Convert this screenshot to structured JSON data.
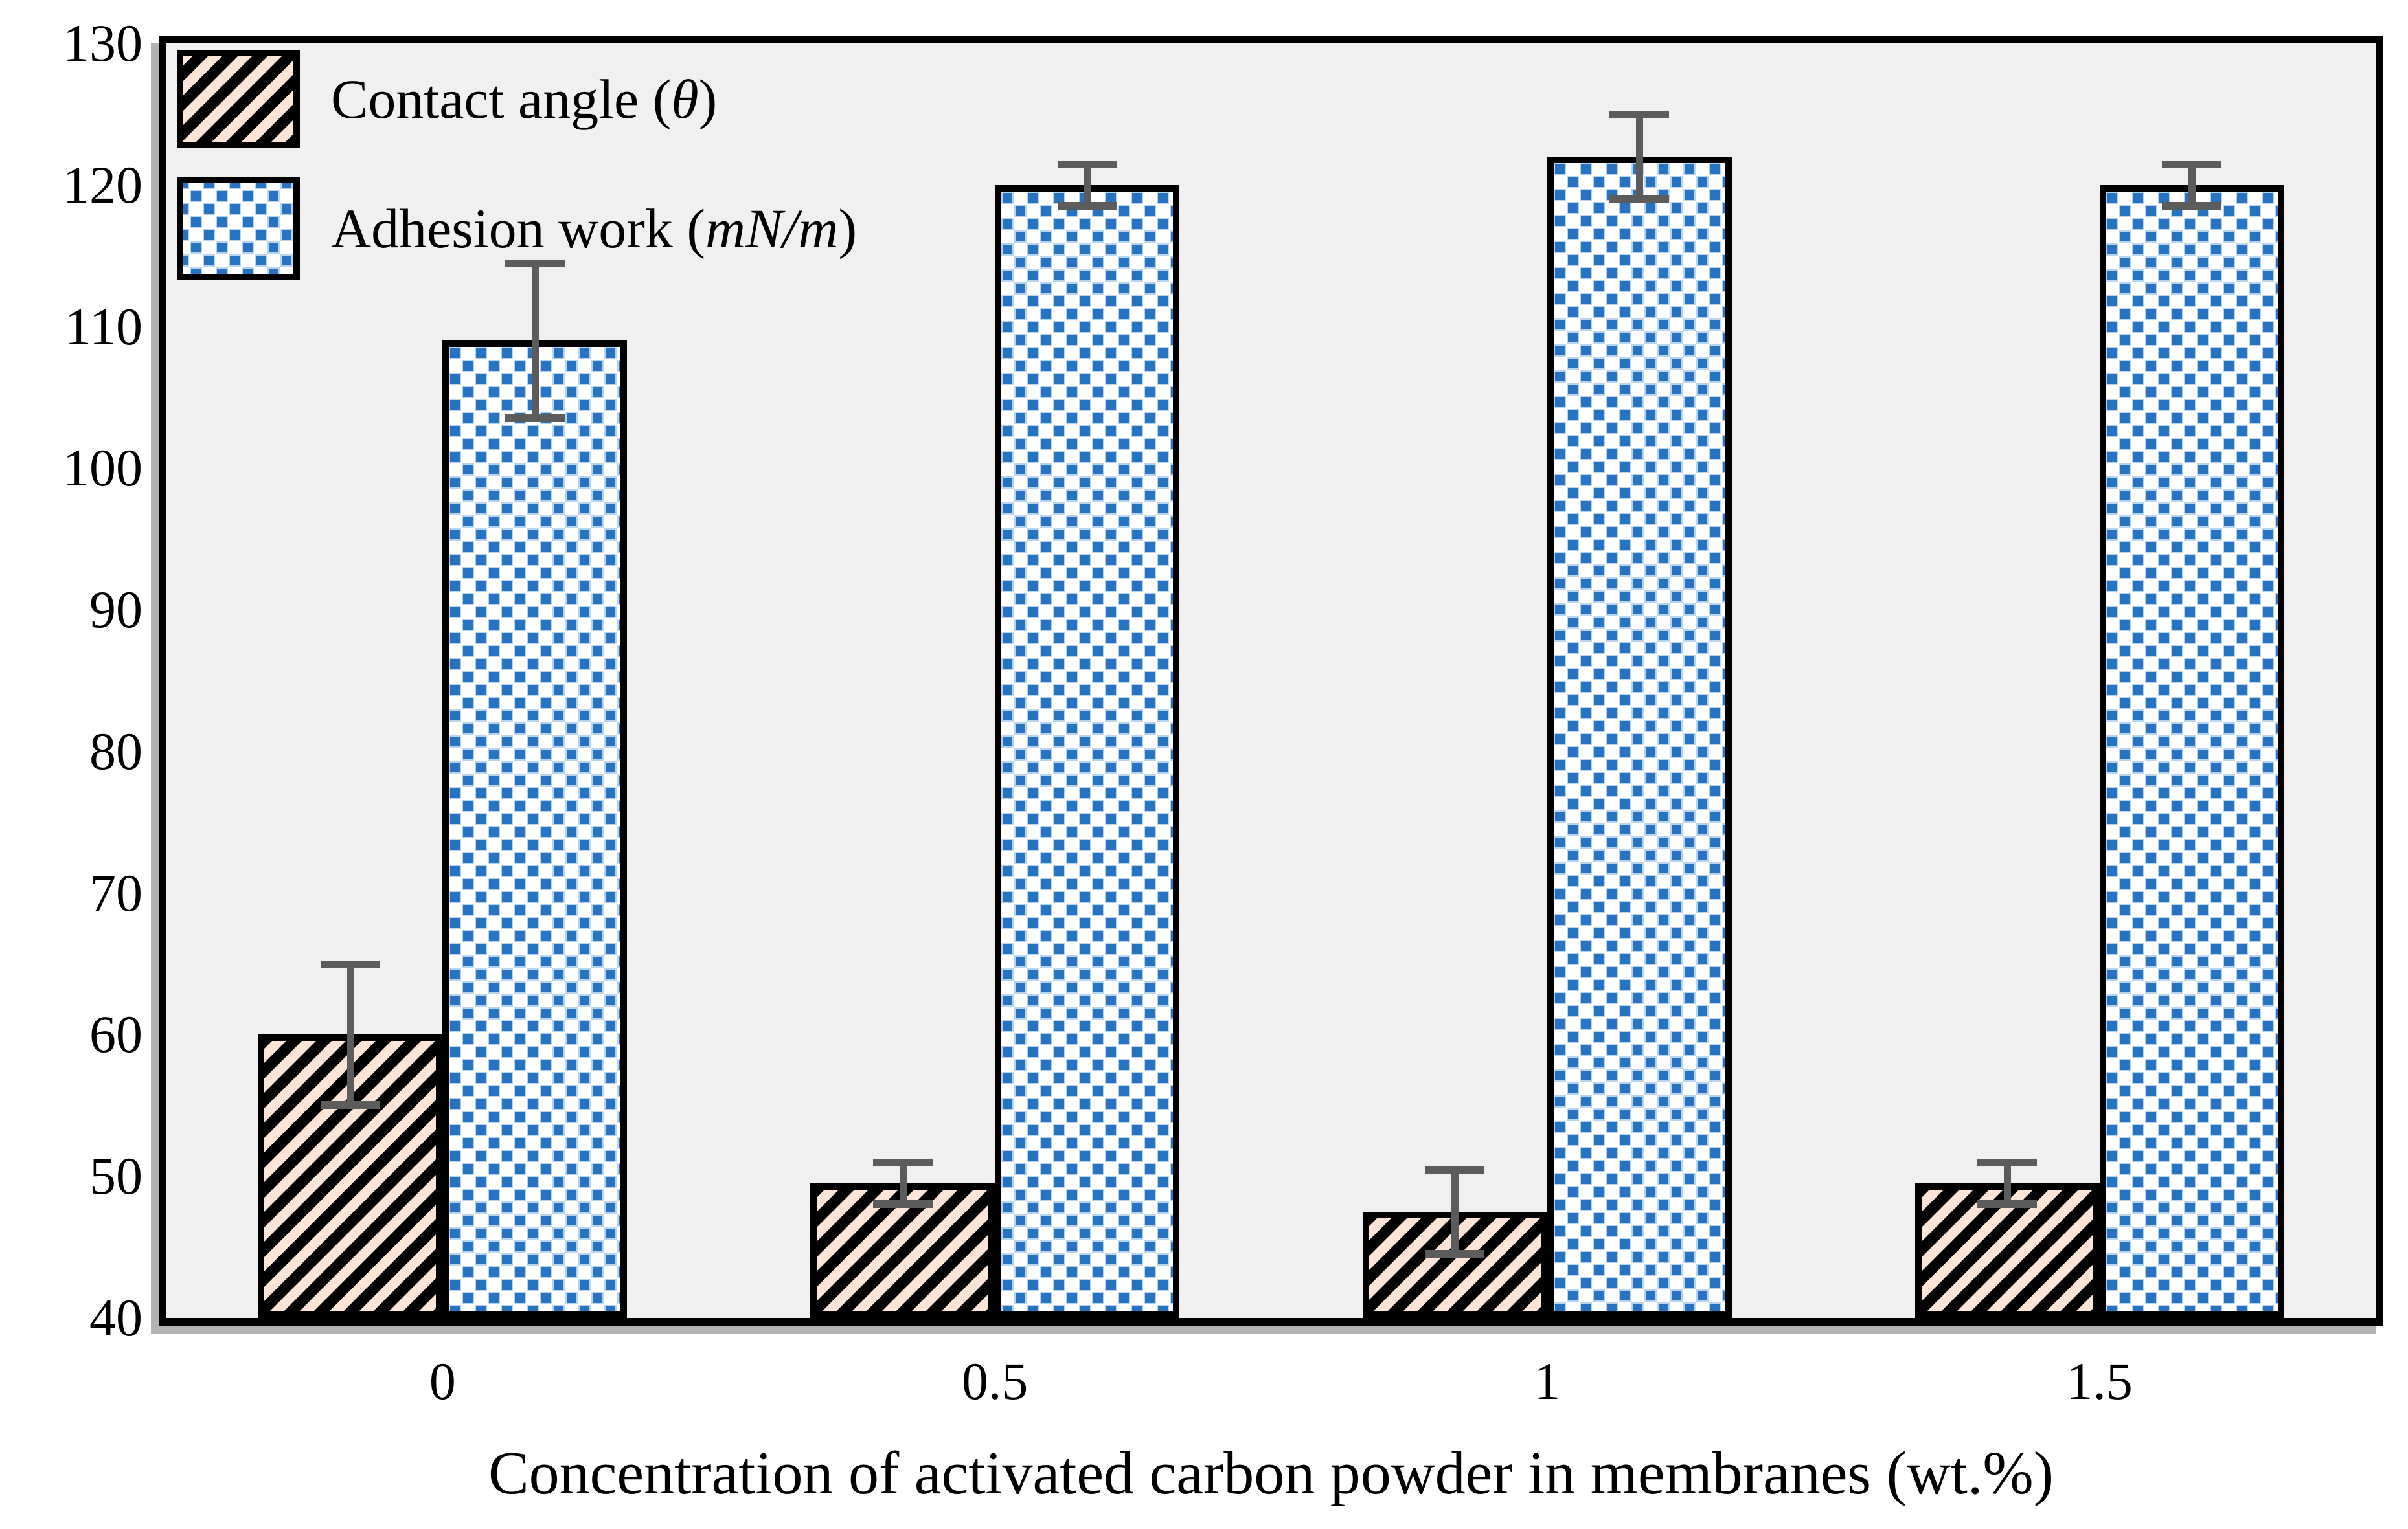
{
  "chart_data": {
    "type": "bar",
    "categories": [
      "0",
      "0.5",
      "1",
      "1.5"
    ],
    "series": [
      {
        "name": "Contact angle (θ)",
        "legend": {
          "prefix": "Contact angle (",
          "italic": "θ",
          "suffix": ")"
        },
        "pattern": "diagonal-hatch",
        "fill_color": "#fce4d6",
        "hatch_color": "#000000",
        "values": [
          60,
          49.5,
          47.5,
          49.5
        ],
        "errors": [
          5,
          1.5,
          3,
          1.5
        ]
      },
      {
        "name": "Adhesion work (mN/m)",
        "legend": {
          "prefix": "Adhesion work (",
          "italic": "mN/m",
          "suffix": ")"
        },
        "pattern": "dots",
        "fill_color": "#2673c2",
        "dot_background": "#ffffff",
        "values": [
          109,
          120,
          122,
          120
        ],
        "errors": [
          5.5,
          1.5,
          3,
          1.5
        ]
      }
    ],
    "xlabel": "Concentration of activated carbon powder in membranes (wt.%)",
    "ylabel": "",
    "title": "",
    "ylim": [
      40,
      130
    ],
    "ytick_step": 10,
    "ytick_labels": [
      "40",
      "50",
      "60",
      "70",
      "80",
      "90",
      "100",
      "110",
      "120",
      "130"
    ],
    "grid": false,
    "legend_position": "top-left",
    "colors": {
      "plot_background": "#f0f0f0",
      "frame_border": "#000000",
      "frame_shadow": "#b3b3b3",
      "error_bar": "#5c5c5c",
      "text": "#000000"
    }
  }
}
